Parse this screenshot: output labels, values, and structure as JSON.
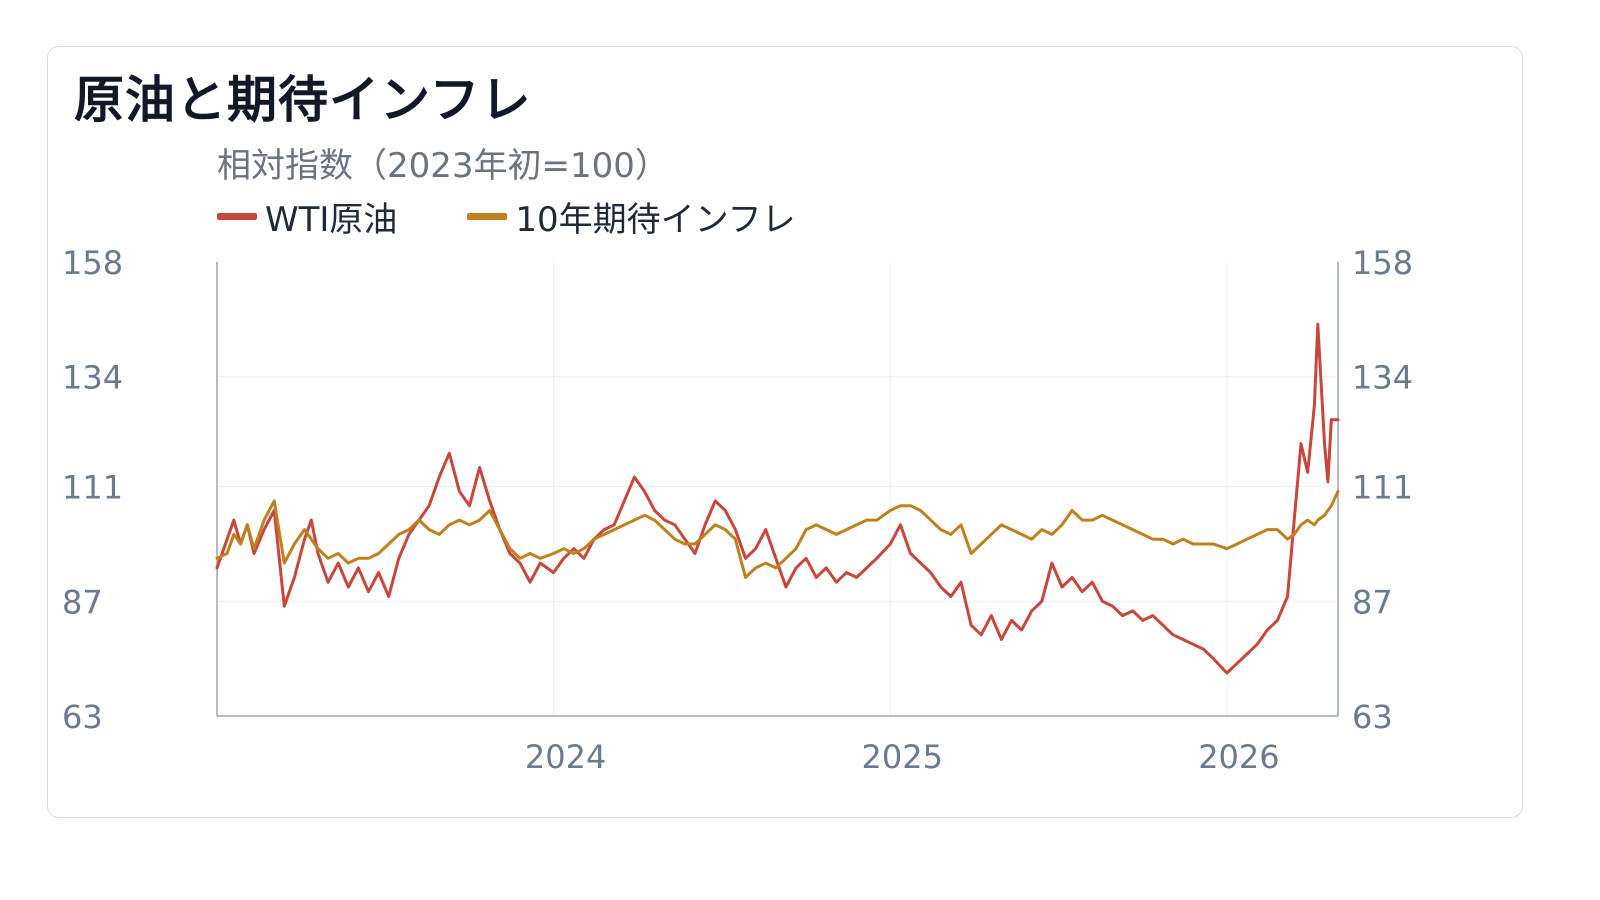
{
  "title": "原油と期待インフレ",
  "subtitle": "相対指数（2023年初=100）",
  "legend": [
    {
      "label": "WTI原油",
      "color": "#c8473a"
    },
    {
      "label": "10年期待インフレ",
      "color": "#c0801d"
    }
  ],
  "chart_data": {
    "type": "line",
    "title": "原油と期待インフレ",
    "subtitle": "相対指数（2023年初=100）",
    "ylim": [
      63,
      158
    ],
    "yticks": [
      63,
      87,
      111,
      134,
      158
    ],
    "ytick_labels": [
      "63",
      "87",
      "111",
      "134",
      "158"
    ],
    "xticks": [
      2024,
      2025,
      2026
    ],
    "xtick_labels": [
      "2024",
      "2025",
      "2026"
    ],
    "xlim": [
      2023.0,
      2026.33
    ],
    "grid": true,
    "legend_position": "top-left",
    "series": [
      {
        "name": "WTI原油",
        "color": "#c8473a",
        "points": [
          [
            2023.0,
            94
          ],
          [
            2023.03,
            100
          ],
          [
            2023.05,
            104
          ],
          [
            2023.07,
            99
          ],
          [
            2023.09,
            103
          ],
          [
            2023.11,
            97
          ],
          [
            2023.14,
            102
          ],
          [
            2023.17,
            106
          ],
          [
            2023.2,
            86
          ],
          [
            2023.23,
            92
          ],
          [
            2023.26,
            100
          ],
          [
            2023.28,
            104
          ],
          [
            2023.3,
            97
          ],
          [
            2023.33,
            91
          ],
          [
            2023.36,
            95
          ],
          [
            2023.39,
            90
          ],
          [
            2023.42,
            94
          ],
          [
            2023.45,
            89
          ],
          [
            2023.48,
            93
          ],
          [
            2023.51,
            88
          ],
          [
            2023.54,
            96
          ],
          [
            2023.57,
            101
          ],
          [
            2023.6,
            104
          ],
          [
            2023.63,
            107
          ],
          [
            2023.66,
            113
          ],
          [
            2023.69,
            118
          ],
          [
            2023.72,
            110
          ],
          [
            2023.75,
            107
          ],
          [
            2023.78,
            115
          ],
          [
            2023.81,
            108
          ],
          [
            2023.84,
            102
          ],
          [
            2023.87,
            97
          ],
          [
            2023.9,
            95
          ],
          [
            2023.93,
            91
          ],
          [
            2023.96,
            95
          ],
          [
            2024.0,
            93
          ],
          [
            2024.03,
            96
          ],
          [
            2024.06,
            98
          ],
          [
            2024.09,
            96
          ],
          [
            2024.12,
            100
          ],
          [
            2024.15,
            102
          ],
          [
            2024.18,
            103
          ],
          [
            2024.21,
            108
          ],
          [
            2024.24,
            113
          ],
          [
            2024.27,
            110
          ],
          [
            2024.3,
            106
          ],
          [
            2024.33,
            104
          ],
          [
            2024.36,
            103
          ],
          [
            2024.39,
            100
          ],
          [
            2024.42,
            97
          ],
          [
            2024.45,
            103
          ],
          [
            2024.48,
            108
          ],
          [
            2024.51,
            106
          ],
          [
            2024.54,
            102
          ],
          [
            2024.57,
            96
          ],
          [
            2024.6,
            98
          ],
          [
            2024.63,
            102
          ],
          [
            2024.66,
            96
          ],
          [
            2024.69,
            90
          ],
          [
            2024.72,
            94
          ],
          [
            2024.75,
            96
          ],
          [
            2024.78,
            92
          ],
          [
            2024.81,
            94
          ],
          [
            2024.84,
            91
          ],
          [
            2024.87,
            93
          ],
          [
            2024.9,
            92
          ],
          [
            2024.93,
            94
          ],
          [
            2024.96,
            96
          ],
          [
            2025.0,
            99
          ],
          [
            2025.03,
            103
          ],
          [
            2025.06,
            97
          ],
          [
            2025.09,
            95
          ],
          [
            2025.12,
            93
          ],
          [
            2025.15,
            90
          ],
          [
            2025.18,
            88
          ],
          [
            2025.21,
            91
          ],
          [
            2025.24,
            82
          ],
          [
            2025.27,
            80
          ],
          [
            2025.3,
            84
          ],
          [
            2025.33,
            79
          ],
          [
            2025.36,
            83
          ],
          [
            2025.39,
            81
          ],
          [
            2025.42,
            85
          ],
          [
            2025.45,
            87
          ],
          [
            2025.48,
            95
          ],
          [
            2025.51,
            90
          ],
          [
            2025.54,
            92
          ],
          [
            2025.57,
            89
          ],
          [
            2025.6,
            91
          ],
          [
            2025.63,
            87
          ],
          [
            2025.66,
            86
          ],
          [
            2025.69,
            84
          ],
          [
            2025.72,
            85
          ],
          [
            2025.75,
            83
          ],
          [
            2025.78,
            84
          ],
          [
            2025.81,
            82
          ],
          [
            2025.84,
            80
          ],
          [
            2025.87,
            79
          ],
          [
            2025.9,
            78
          ],
          [
            2025.93,
            77
          ],
          [
            2025.96,
            75
          ],
          [
            2026.0,
            72
          ],
          [
            2026.03,
            74
          ],
          [
            2026.06,
            76
          ],
          [
            2026.09,
            78
          ],
          [
            2026.12,
            81
          ],
          [
            2026.15,
            83
          ],
          [
            2026.18,
            88
          ],
          [
            2026.2,
            104
          ],
          [
            2026.22,
            120
          ],
          [
            2026.24,
            114
          ],
          [
            2026.26,
            128
          ],
          [
            2026.27,
            145
          ],
          [
            2026.29,
            120
          ],
          [
            2026.3,
            112
          ],
          [
            2026.31,
            125
          ],
          [
            2026.33,
            125
          ]
        ]
      },
      {
        "name": "10年期待インフレ",
        "color": "#c0801d",
        "points": [
          [
            2023.0,
            96
          ],
          [
            2023.03,
            97
          ],
          [
            2023.05,
            101
          ],
          [
            2023.07,
            99
          ],
          [
            2023.09,
            103
          ],
          [
            2023.11,
            98
          ],
          [
            2023.14,
            104
          ],
          [
            2023.17,
            108
          ],
          [
            2023.2,
            95
          ],
          [
            2023.23,
            99
          ],
          [
            2023.26,
            102
          ],
          [
            2023.28,
            100
          ],
          [
            2023.3,
            98
          ],
          [
            2023.33,
            96
          ],
          [
            2023.36,
            97
          ],
          [
            2023.39,
            95
          ],
          [
            2023.42,
            96
          ],
          [
            2023.45,
            96
          ],
          [
            2023.48,
            97
          ],
          [
            2023.51,
            99
          ],
          [
            2023.54,
            101
          ],
          [
            2023.57,
            102
          ],
          [
            2023.6,
            104
          ],
          [
            2023.63,
            102
          ],
          [
            2023.66,
            101
          ],
          [
            2023.69,
            103
          ],
          [
            2023.72,
            104
          ],
          [
            2023.75,
            103
          ],
          [
            2023.78,
            104
          ],
          [
            2023.81,
            106
          ],
          [
            2023.84,
            102
          ],
          [
            2023.87,
            98
          ],
          [
            2023.9,
            96
          ],
          [
            2023.93,
            97
          ],
          [
            2023.96,
            96
          ],
          [
            2024.0,
            97
          ],
          [
            2024.03,
            98
          ],
          [
            2024.06,
            97
          ],
          [
            2024.09,
            98
          ],
          [
            2024.12,
            100
          ],
          [
            2024.15,
            101
          ],
          [
            2024.18,
            102
          ],
          [
            2024.21,
            103
          ],
          [
            2024.24,
            104
          ],
          [
            2024.27,
            105
          ],
          [
            2024.3,
            104
          ],
          [
            2024.33,
            102
          ],
          [
            2024.36,
            100
          ],
          [
            2024.39,
            99
          ],
          [
            2024.42,
            99
          ],
          [
            2024.45,
            101
          ],
          [
            2024.48,
            103
          ],
          [
            2024.51,
            102
          ],
          [
            2024.54,
            100
          ],
          [
            2024.57,
            92
          ],
          [
            2024.6,
            94
          ],
          [
            2024.63,
            95
          ],
          [
            2024.66,
            94
          ],
          [
            2024.69,
            96
          ],
          [
            2024.72,
            98
          ],
          [
            2024.75,
            102
          ],
          [
            2024.78,
            103
          ],
          [
            2024.81,
            102
          ],
          [
            2024.84,
            101
          ],
          [
            2024.87,
            102
          ],
          [
            2024.9,
            103
          ],
          [
            2024.93,
            104
          ],
          [
            2024.96,
            104
          ],
          [
            2025.0,
            106
          ],
          [
            2025.03,
            107
          ],
          [
            2025.06,
            107
          ],
          [
            2025.09,
            106
          ],
          [
            2025.12,
            104
          ],
          [
            2025.15,
            102
          ],
          [
            2025.18,
            101
          ],
          [
            2025.21,
            103
          ],
          [
            2025.24,
            97
          ],
          [
            2025.27,
            99
          ],
          [
            2025.3,
            101
          ],
          [
            2025.33,
            103
          ],
          [
            2025.36,
            102
          ],
          [
            2025.39,
            101
          ],
          [
            2025.42,
            100
          ],
          [
            2025.45,
            102
          ],
          [
            2025.48,
            101
          ],
          [
            2025.51,
            103
          ],
          [
            2025.54,
            106
          ],
          [
            2025.57,
            104
          ],
          [
            2025.6,
            104
          ],
          [
            2025.63,
            105
          ],
          [
            2025.66,
            104
          ],
          [
            2025.69,
            103
          ],
          [
            2025.72,
            102
          ],
          [
            2025.75,
            101
          ],
          [
            2025.78,
            100
          ],
          [
            2025.81,
            100
          ],
          [
            2025.84,
            99
          ],
          [
            2025.87,
            100
          ],
          [
            2025.9,
            99
          ],
          [
            2025.93,
            99
          ],
          [
            2025.96,
            99
          ],
          [
            2026.0,
            98
          ],
          [
            2026.03,
            99
          ],
          [
            2026.06,
            100
          ],
          [
            2026.09,
            101
          ],
          [
            2026.12,
            102
          ],
          [
            2026.15,
            102
          ],
          [
            2026.18,
            100
          ],
          [
            2026.2,
            101
          ],
          [
            2026.22,
            103
          ],
          [
            2026.24,
            104
          ],
          [
            2026.26,
            103
          ],
          [
            2026.27,
            104
          ],
          [
            2026.29,
            105
          ],
          [
            2026.31,
            107
          ],
          [
            2026.33,
            110
          ]
        ]
      }
    ]
  }
}
